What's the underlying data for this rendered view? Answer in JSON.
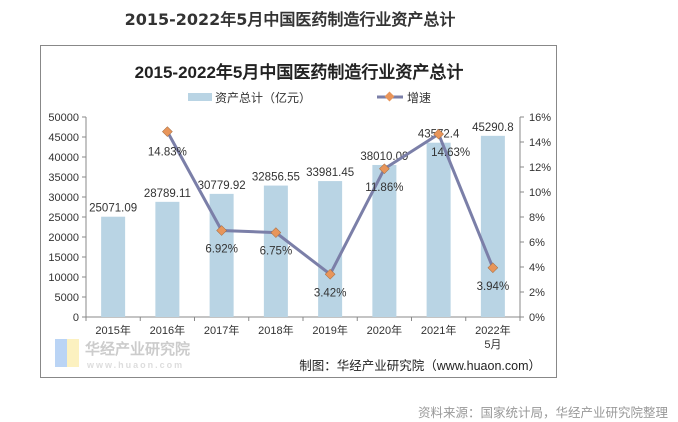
{
  "page_title": "2015-2022年5月中国医药制造行业资产总计",
  "source": "资料来源：国家统计局，华经产业研究院整理",
  "credit": "制图：华经产业研究院（www.huaon.com）",
  "watermark": {
    "cn": "华经产业研究院",
    "en": "www.huaon.com"
  },
  "chart_data": {
    "type": "bar+line",
    "title": "2015-2022年5月中国医药制造行业资产总计",
    "categories": [
      "2015年",
      "2016年",
      "2017年",
      "2018年",
      "2019年",
      "2020年",
      "2021年",
      "2022年5月"
    ],
    "series": [
      {
        "name": "资产总计（亿元）",
        "type": "bar",
        "axis": "left",
        "color": "#b9d4e4",
        "values": [
          25071.09,
          28789.11,
          30779.92,
          32856.55,
          33981.45,
          38010.09,
          43572.4,
          45290.8
        ],
        "labels": [
          "25071.09",
          "28789.11",
          "30779.92",
          "32856.55",
          "33981.45",
          "38010.09",
          "43572.4",
          "45290.8"
        ]
      },
      {
        "name": "增速",
        "type": "line",
        "axis": "right",
        "color": "#7b7fa8",
        "marker_color": "#e8955a",
        "values": [
          null,
          14.83,
          6.92,
          6.75,
          3.42,
          11.86,
          14.63,
          3.94
        ],
        "labels": [
          "",
          "14.83%",
          "6.92%",
          "6.75%",
          "3.42%",
          "11.86%",
          "14.63%",
          "3.94%"
        ]
      }
    ],
    "y_left": {
      "range": [
        0,
        50000
      ],
      "ticks": [
        "0",
        "5000",
        "10000",
        "15000",
        "20000",
        "25000",
        "30000",
        "35000",
        "40000",
        "45000",
        "50000"
      ]
    },
    "y_right": {
      "range": [
        0,
        16
      ],
      "ticks": [
        "0%",
        "2%",
        "4%",
        "6%",
        "8%",
        "10%",
        "12%",
        "14%",
        "16%"
      ]
    },
    "legend": "top",
    "grid": false
  }
}
